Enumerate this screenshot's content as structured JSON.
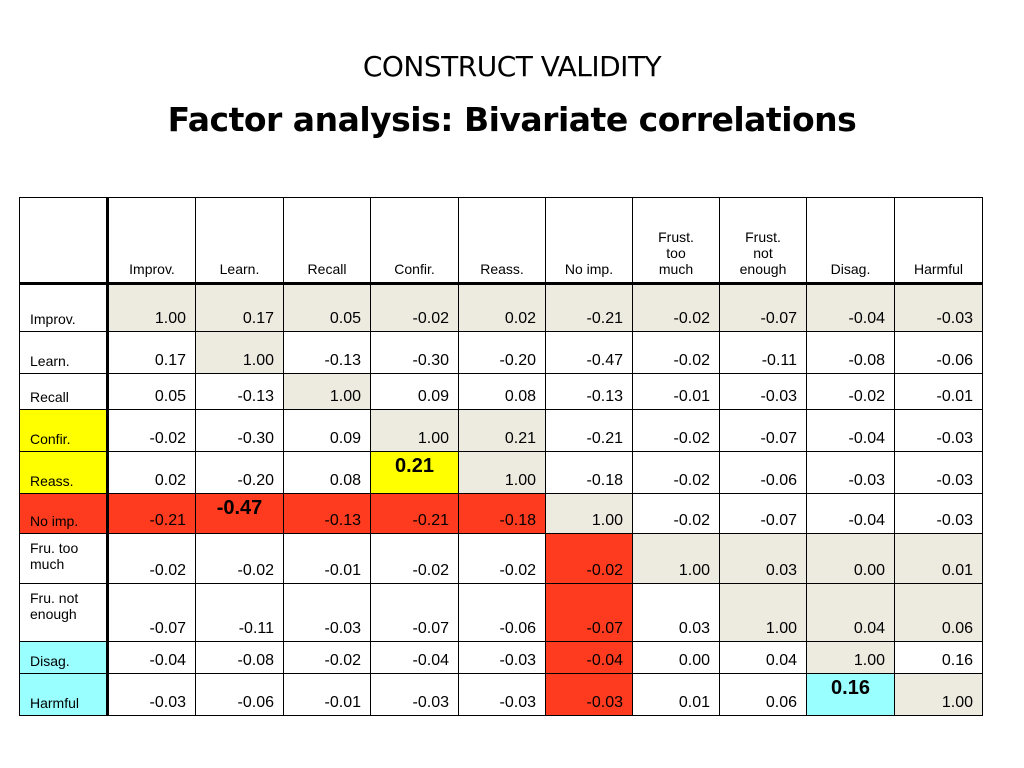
{
  "title": {
    "line1": "CONSTRUCT VALIDITY",
    "line2": "Factor analysis: Bivariate correlations"
  },
  "columns": [
    "Improv.",
    "Learn.",
    "Recall",
    "Confir.",
    "Reass.",
    "No imp.",
    "Frust.\ntoo\nmuch",
    "Frust.\nnot\nenough",
    "Disag.",
    "Harmful"
  ],
  "rows": [
    {
      "label": "Improv.",
      "values": [
        "1.00",
        "0.17",
        "0.05",
        "-0.02",
        "0.02",
        "-0.21",
        "-0.02",
        "-0.07",
        "-0.04",
        "-0.03"
      ]
    },
    {
      "label": "Learn.",
      "values": [
        "0.17",
        "1.00",
        "-0.13",
        "-0.30",
        "-0.20",
        "-0.47",
        "-0.02",
        "-0.11",
        "-0.08",
        "-0.06"
      ]
    },
    {
      "label": "Recall",
      "values": [
        "0.05",
        "-0.13",
        "1.00",
        "0.09",
        "0.08",
        "-0.13",
        "-0.01",
        "-0.03",
        "-0.02",
        "-0.01"
      ]
    },
    {
      "label": "Confir.",
      "values": [
        "-0.02",
        "-0.30",
        "0.09",
        "1.00",
        "0.21",
        "-0.21",
        "-0.02",
        "-0.07",
        "-0.04",
        "-0.03"
      ]
    },
    {
      "label": "Reass.",
      "values": [
        "0.02",
        "-0.20",
        "0.08",
        "0.21",
        "1.00",
        "-0.18",
        "-0.02",
        "-0.06",
        "-0.03",
        "-0.03"
      ]
    },
    {
      "label": "No imp.",
      "values": [
        "-0.21",
        "-0.47",
        "-0.13",
        "-0.21",
        "-0.18",
        "1.00",
        "-0.02",
        "-0.07",
        "-0.04",
        "-0.03"
      ]
    },
    {
      "label": "Fru. too\nmuch",
      "values": [
        "-0.02",
        "-0.02",
        "-0.01",
        "-0.02",
        "-0.02",
        "-0.02",
        "1.00",
        "0.03",
        "0.00",
        "0.01"
      ]
    },
    {
      "label": "Fru. not\nenough",
      "values": [
        "-0.07",
        "-0.11",
        "-0.03",
        "-0.07",
        "-0.06",
        "-0.07",
        "0.03",
        "1.00",
        "0.04",
        "0.06"
      ]
    },
    {
      "label": "Disag.",
      "values": [
        "-0.04",
        "-0.08",
        "-0.02",
        "-0.04",
        "-0.03",
        "-0.04",
        "0.00",
        "0.04",
        "1.00",
        "0.16"
      ]
    },
    {
      "label": "Harmful",
      "values": [
        "-0.03",
        "-0.06",
        "-0.01",
        "-0.03",
        "-0.03",
        "-0.03",
        "0.01",
        "0.06",
        "0.16",
        "1.00"
      ]
    }
  ],
  "colors": {
    "gray": "#edeae0",
    "yellow": "#ffff00",
    "red": "#ff3b1f",
    "cyan": "#99ffff"
  }
}
